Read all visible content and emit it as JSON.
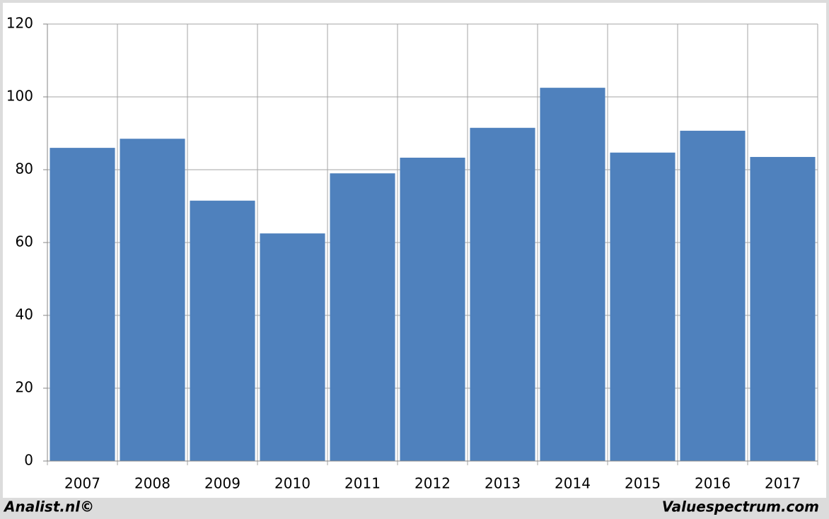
{
  "chart_data": {
    "type": "bar",
    "categories": [
      "2007",
      "2008",
      "2009",
      "2010",
      "2011",
      "2012",
      "2013",
      "2014",
      "2015",
      "2016",
      "2017"
    ],
    "values": [
      86.0,
      88.5,
      71.5,
      62.5,
      79.0,
      83.3,
      91.5,
      102.5,
      84.7,
      90.7,
      83.5
    ],
    "color": "#4f81bd",
    "ylim": [
      0,
      120
    ],
    "yticks": [
      0,
      20,
      40,
      60,
      80,
      100,
      120
    ],
    "grid": true,
    "source": "Analist.nl©",
    "credit": "Valuespectrum.com"
  }
}
